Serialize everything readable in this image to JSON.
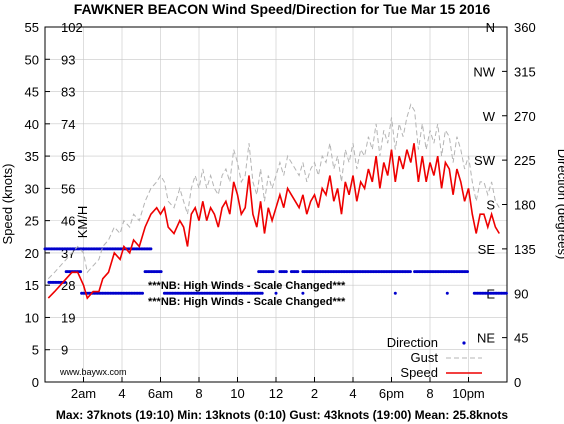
{
  "title": "FAWKNER BEACON Wind Speed/Direction for Tue Mar 15 2016",
  "footer": "Max: 37knots (19:10) Min: 13knots (0:10) Gust: 43knots (19:00) Mean: 25.8knots",
  "watermark": "www.baywx.com",
  "notice": "***NB: High Winds - Scale Changed***",
  "colors": {
    "speed": "#ee0000",
    "gust": "#b4b4b4",
    "direction": "#0000cc",
    "grid": "#c8c8c8"
  },
  "chart_data": {
    "type": "line",
    "ylabel": "Speed (knots)",
    "y2label": "Direction (degrees)",
    "kmh_label": "KM/H",
    "ylim": [
      0,
      55
    ],
    "y_ticks": [
      "0",
      "5",
      "10",
      "15",
      "20",
      "25",
      "30",
      "35",
      "40",
      "45",
      "50",
      "55"
    ],
    "kmh_ticks": [
      {
        "knots": 5,
        "label": "9"
      },
      {
        "knots": 10,
        "label": "19"
      },
      {
        "knots": 15,
        "label": "28"
      },
      {
        "knots": 20,
        "label": "37"
      },
      {
        "knots": 25,
        "label": "46"
      },
      {
        "knots": 30,
        "label": "56"
      },
      {
        "knots": 35,
        "label": "65"
      },
      {
        "knots": 40,
        "label": "74"
      },
      {
        "knots": 45,
        "label": "83"
      },
      {
        "knots": 50,
        "label": "93"
      },
      {
        "knots": 55,
        "label": "102"
      }
    ],
    "y2lim": [
      0,
      360
    ],
    "y2_ticks": [
      "0",
      "45",
      "90",
      "135",
      "180",
      "225",
      "270",
      "315",
      "360"
    ],
    "compass": [
      {
        "deg": 45,
        "label": "NE"
      },
      {
        "deg": 90,
        "label": "E"
      },
      {
        "deg": 135,
        "label": "SE"
      },
      {
        "deg": 180,
        "label": "S"
      },
      {
        "deg": 225,
        "label": "SW"
      },
      {
        "deg": 270,
        "label": "W"
      },
      {
        "deg": 315,
        "label": "NW"
      },
      {
        "deg": 360,
        "label": "N"
      }
    ],
    "xlim": [
      0,
      24
    ],
    "x_ticks": [
      {
        "hour": 2,
        "label": "2am"
      },
      {
        "hour": 4,
        "label": "4"
      },
      {
        "hour": 6,
        "label": "6am"
      },
      {
        "hour": 8,
        "label": "8"
      },
      {
        "hour": 10,
        "label": "10"
      },
      {
        "hour": 12,
        "label": "12"
      },
      {
        "hour": 14,
        "label": "2"
      },
      {
        "hour": 16,
        "label": "4"
      },
      {
        "hour": 18,
        "label": "6pm"
      },
      {
        "hour": 20,
        "label": "8"
      },
      {
        "hour": 22,
        "label": "10pm"
      }
    ],
    "legend": [
      {
        "name": "Direction",
        "style": "dots"
      },
      {
        "name": "Gust",
        "style": "dashed"
      },
      {
        "name": "Speed",
        "style": "solid"
      }
    ],
    "series": [
      {
        "name": "Speed",
        "points": [
          [
            0.17,
            13
          ],
          [
            0.5,
            14
          ],
          [
            0.8,
            15
          ],
          [
            1.1,
            16
          ],
          [
            1.4,
            17
          ],
          [
            1.7,
            17
          ],
          [
            2,
            15
          ],
          [
            2.2,
            13
          ],
          [
            2.5,
            14
          ],
          [
            2.8,
            14
          ],
          [
            3,
            16
          ],
          [
            3.3,
            17
          ],
          [
            3.6,
            20
          ],
          [
            3.9,
            19
          ],
          [
            4.1,
            21
          ],
          [
            4.4,
            20
          ],
          [
            4.6,
            22
          ],
          [
            4.9,
            21
          ],
          [
            5.2,
            24
          ],
          [
            5.5,
            26
          ],
          [
            5.8,
            27
          ],
          [
            6,
            26
          ],
          [
            6.2,
            27
          ],
          [
            6.4,
            24
          ],
          [
            6.7,
            23
          ],
          [
            7,
            25
          ],
          [
            7.2,
            24
          ],
          [
            7.4,
            21
          ],
          [
            7.6,
            26
          ],
          [
            7.8,
            27
          ],
          [
            8,
            25
          ],
          [
            8.2,
            28
          ],
          [
            8.4,
            25
          ],
          [
            8.6,
            27
          ],
          [
            8.8,
            26
          ],
          [
            9,
            24
          ],
          [
            9.2,
            27
          ],
          [
            9.4,
            28
          ],
          [
            9.6,
            26
          ],
          [
            9.8,
            31
          ],
          [
            10,
            29
          ],
          [
            10.2,
            26
          ],
          [
            10.4,
            27
          ],
          [
            10.6,
            32
          ],
          [
            10.8,
            26
          ],
          [
            11,
            24
          ],
          [
            11.2,
            28
          ],
          [
            11.4,
            23
          ],
          [
            11.6,
            27
          ],
          [
            11.8,
            25
          ],
          [
            12,
            27
          ],
          [
            12.2,
            29
          ],
          [
            12.4,
            27
          ],
          [
            12.6,
            30
          ],
          [
            12.8,
            29
          ],
          [
            13,
            28
          ],
          [
            13.2,
            27
          ],
          [
            13.4,
            29
          ],
          [
            13.6,
            26
          ],
          [
            13.8,
            28
          ],
          [
            14,
            29
          ],
          [
            14.2,
            27
          ],
          [
            14.4,
            30
          ],
          [
            14.6,
            29
          ],
          [
            14.8,
            32
          ],
          [
            15,
            28
          ],
          [
            15.2,
            30
          ],
          [
            15.4,
            26
          ],
          [
            15.6,
            31
          ],
          [
            15.8,
            29
          ],
          [
            16,
            32
          ],
          [
            16.2,
            28
          ],
          [
            16.4,
            31
          ],
          [
            16.6,
            30
          ],
          [
            16.8,
            33
          ],
          [
            17,
            31
          ],
          [
            17.2,
            35
          ],
          [
            17.4,
            30
          ],
          [
            17.6,
            34
          ],
          [
            17.8,
            32
          ],
          [
            18,
            36
          ],
          [
            18.2,
            31
          ],
          [
            18.4,
            35
          ],
          [
            18.6,
            33
          ],
          [
            18.8,
            36
          ],
          [
            19,
            34
          ],
          [
            19.17,
            37
          ],
          [
            19.4,
            31
          ],
          [
            19.6,
            35
          ],
          [
            19.8,
            31
          ],
          [
            20,
            34
          ],
          [
            20.2,
            32
          ],
          [
            20.4,
            35
          ],
          [
            20.6,
            30
          ],
          [
            20.8,
            34
          ],
          [
            21,
            33
          ],
          [
            21.2,
            29
          ],
          [
            21.4,
            33
          ],
          [
            21.6,
            31
          ],
          [
            21.8,
            28
          ],
          [
            22,
            30
          ],
          [
            22.2,
            26
          ],
          [
            22.4,
            23
          ],
          [
            22.6,
            26
          ],
          [
            22.8,
            26
          ],
          [
            23,
            24
          ],
          [
            23.2,
            26
          ],
          [
            23.4,
            24
          ],
          [
            23.6,
            23
          ]
        ]
      },
      {
        "name": "Gust",
        "points": [
          [
            0.17,
            16
          ],
          [
            0.5,
            17
          ],
          [
            0.8,
            18
          ],
          [
            1.1,
            19
          ],
          [
            1.4,
            20
          ],
          [
            1.7,
            21
          ],
          [
            2,
            20
          ],
          [
            2.2,
            17
          ],
          [
            2.5,
            18
          ],
          [
            2.8,
            19
          ],
          [
            3,
            21
          ],
          [
            3.3,
            22
          ],
          [
            3.6,
            24
          ],
          [
            3.9,
            23
          ],
          [
            4.1,
            25
          ],
          [
            4.4,
            24
          ],
          [
            4.6,
            26
          ],
          [
            4.9,
            25
          ],
          [
            5.2,
            28
          ],
          [
            5.5,
            30
          ],
          [
            5.8,
            31
          ],
          [
            6,
            32
          ],
          [
            6.2,
            31
          ],
          [
            6.4,
            28
          ],
          [
            6.7,
            27
          ],
          [
            7,
            30
          ],
          [
            7.2,
            28
          ],
          [
            7.4,
            26
          ],
          [
            7.6,
            30
          ],
          [
            7.8,
            32
          ],
          [
            8,
            30
          ],
          [
            8.2,
            33
          ],
          [
            8.4,
            30
          ],
          [
            8.6,
            32
          ],
          [
            8.8,
            30
          ],
          [
            9,
            29
          ],
          [
            9.2,
            32
          ],
          [
            9.4,
            33
          ],
          [
            9.6,
            31
          ],
          [
            9.8,
            36
          ],
          [
            10,
            34
          ],
          [
            10.2,
            31
          ],
          [
            10.4,
            32
          ],
          [
            10.6,
            37
          ],
          [
            10.8,
            31
          ],
          [
            11,
            29
          ],
          [
            11.2,
            33
          ],
          [
            11.4,
            28
          ],
          [
            11.6,
            32
          ],
          [
            11.8,
            30
          ],
          [
            12,
            32
          ],
          [
            12.2,
            34
          ],
          [
            12.4,
            32
          ],
          [
            12.6,
            35
          ],
          [
            12.8,
            34
          ],
          [
            13,
            33
          ],
          [
            13.2,
            32
          ],
          [
            13.4,
            34
          ],
          [
            13.6,
            31
          ],
          [
            13.8,
            33
          ],
          [
            14,
            34
          ],
          [
            14.2,
            32
          ],
          [
            14.4,
            35
          ],
          [
            14.6,
            34
          ],
          [
            14.8,
            37
          ],
          [
            15,
            33
          ],
          [
            15.2,
            35
          ],
          [
            15.4,
            31
          ],
          [
            15.6,
            36
          ],
          [
            15.8,
            34
          ],
          [
            16,
            37
          ],
          [
            16.2,
            33
          ],
          [
            16.4,
            36
          ],
          [
            16.6,
            35
          ],
          [
            16.8,
            38
          ],
          [
            17,
            36
          ],
          [
            17.2,
            40
          ],
          [
            17.4,
            35
          ],
          [
            17.6,
            39
          ],
          [
            17.8,
            37
          ],
          [
            18,
            41
          ],
          [
            18.2,
            36
          ],
          [
            18.4,
            40
          ],
          [
            18.6,
            38
          ],
          [
            18.8,
            41
          ],
          [
            19,
            43
          ],
          [
            19.2,
            42
          ],
          [
            19.4,
            36
          ],
          [
            19.6,
            40
          ],
          [
            19.8,
            36
          ],
          [
            20,
            39
          ],
          [
            20.2,
            37
          ],
          [
            20.4,
            40
          ],
          [
            20.6,
            35
          ],
          [
            20.8,
            39
          ],
          [
            21,
            38
          ],
          [
            21.2,
            34
          ],
          [
            21.4,
            38
          ],
          [
            21.6,
            36
          ],
          [
            21.8,
            33
          ],
          [
            22,
            35
          ],
          [
            22.2,
            31
          ],
          [
            22.4,
            28
          ],
          [
            22.6,
            31
          ],
          [
            22.8,
            31
          ],
          [
            23,
            29
          ],
          [
            23.2,
            31
          ],
          [
            23.4,
            28
          ],
          [
            23.6,
            27
          ]
        ]
      }
    ],
    "direction_segments": [
      {
        "x_start": 0,
        "x_end": 2.0,
        "deg": 135
      },
      {
        "x_start": 0.2,
        "x_end": 1.1,
        "deg": 101
      },
      {
        "x_start": 1.1,
        "x_end": 1.9,
        "deg": 112
      },
      {
        "x_start": 1.9,
        "x_end": 5.1,
        "deg": 90
      },
      {
        "x_start": 2.0,
        "x_end": 5.5,
        "deg": 135
      },
      {
        "x_start": 5.2,
        "x_end": 6.1,
        "deg": 112
      },
      {
        "x_start": 6.2,
        "x_end": 11.3,
        "deg": 90
      },
      {
        "x_start": 11.1,
        "x_end": 11.9,
        "deg": 112
      },
      {
        "x_start": 12.2,
        "x_end": 12.6,
        "deg": 112
      },
      {
        "x_start": 12.8,
        "x_end": 13.2,
        "deg": 112
      },
      {
        "x_start": 13.4,
        "x_end": 19.0,
        "deg": 112
      },
      {
        "x_start": 19.2,
        "x_end": 22.0,
        "deg": 112
      },
      {
        "x_start": 22.3,
        "x_end": 24,
        "deg": 90
      }
    ],
    "direction_points": [
      {
        "x": 12.0,
        "deg": 90
      },
      {
        "x": 13.4,
        "deg": 90
      },
      {
        "x": 18.2,
        "deg": 90
      },
      {
        "x": 20.9,
        "deg": 90
      }
    ]
  }
}
